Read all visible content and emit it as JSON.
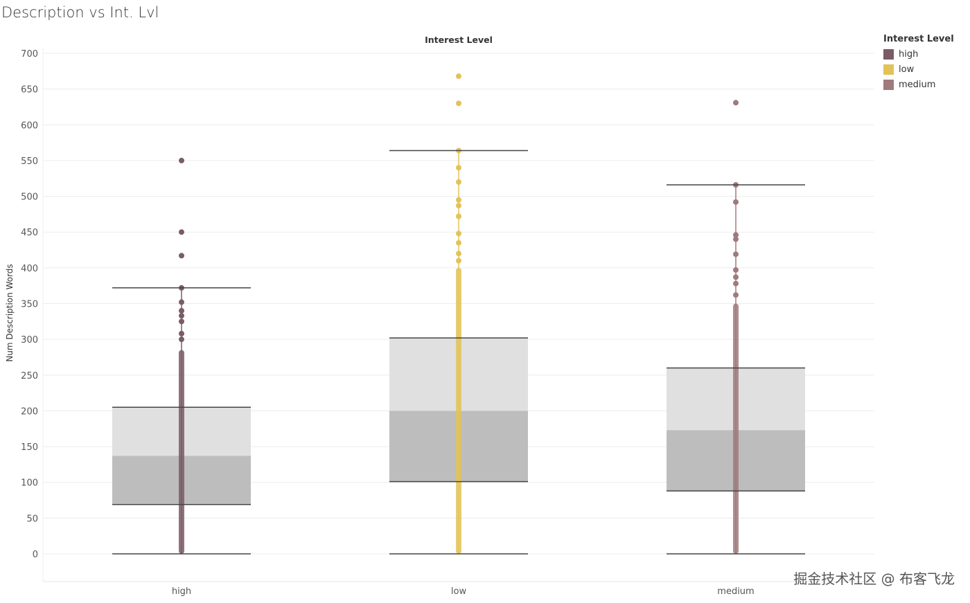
{
  "title": "Description vs Int. Lvl",
  "watermark": "掘金技术社区 @ 布客飞龙",
  "chart_data": {
    "type": "box",
    "title": "Description vs Int. Lvl",
    "header": "Interest Level",
    "xlabel": "",
    "ylabel": "Num Description Words",
    "ylim": [
      -40,
      700
    ],
    "yticks": [
      0,
      50,
      100,
      150,
      200,
      250,
      300,
      350,
      400,
      450,
      500,
      550,
      600,
      650,
      700
    ],
    "categories": [
      "high",
      "low",
      "medium"
    ],
    "colors": {
      "high": "#7a5c66",
      "low": "#e2c35a",
      "medium": "#a07a7c"
    },
    "boxes": [
      {
        "category": "high",
        "min": 0,
        "q1": 69,
        "median": 137,
        "q3": 205,
        "max": 372,
        "dense_top": 285,
        "outliers": [
          300,
          308,
          325,
          333,
          340,
          352,
          372,
          417,
          450,
          550
        ]
      },
      {
        "category": "low",
        "min": 0,
        "q1": 101,
        "median": 200,
        "q3": 302,
        "max": 564,
        "dense_top": 400,
        "outliers": [
          410,
          420,
          435,
          448,
          472,
          487,
          495,
          520,
          540,
          564,
          630,
          668
        ]
      },
      {
        "category": "medium",
        "min": 0,
        "q1": 88,
        "median": 173,
        "q3": 260,
        "max": 516,
        "dense_top": 350,
        "outliers": [
          362,
          378,
          387,
          397,
          419,
          440,
          446,
          492,
          516,
          631
        ]
      }
    ],
    "legend": {
      "title": "Interest Level",
      "position": "top-right",
      "items": [
        "high",
        "low",
        "medium"
      ]
    },
    "grid": true
  }
}
